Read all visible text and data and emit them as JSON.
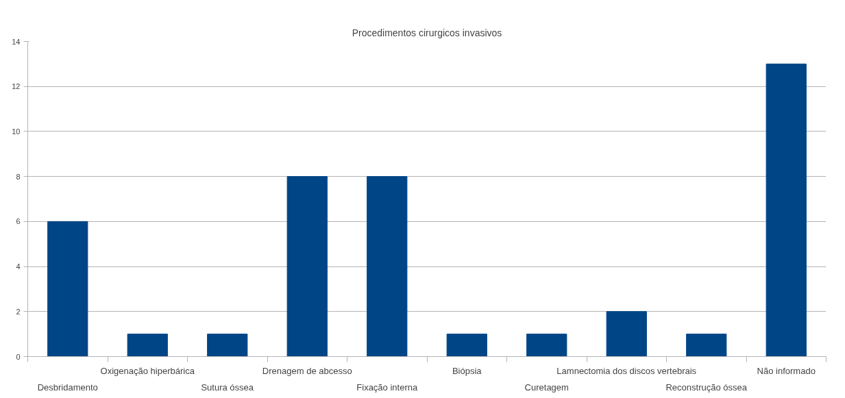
{
  "chart_data": {
    "type": "bar",
    "title": "Procedimentos cirurgicos invasivos",
    "categories": [
      "Desbridamento",
      "Oxigenação hiperbárica",
      "Sutura óssea",
      "Drenagem de abcesso",
      "Fixação interna",
      "Biópsia",
      "Curetagem",
      "Lamnectomia dos discos vertebrais",
      "Reconstrução óssea",
      "Não informado"
    ],
    "values": [
      6,
      1,
      1,
      8,
      8,
      1,
      1,
      2,
      1,
      13
    ],
    "color": "#004586",
    "ylim": [
      0,
      14
    ],
    "yticks": [
      0,
      2,
      4,
      6,
      8,
      10,
      12,
      14
    ],
    "grid": "y"
  }
}
